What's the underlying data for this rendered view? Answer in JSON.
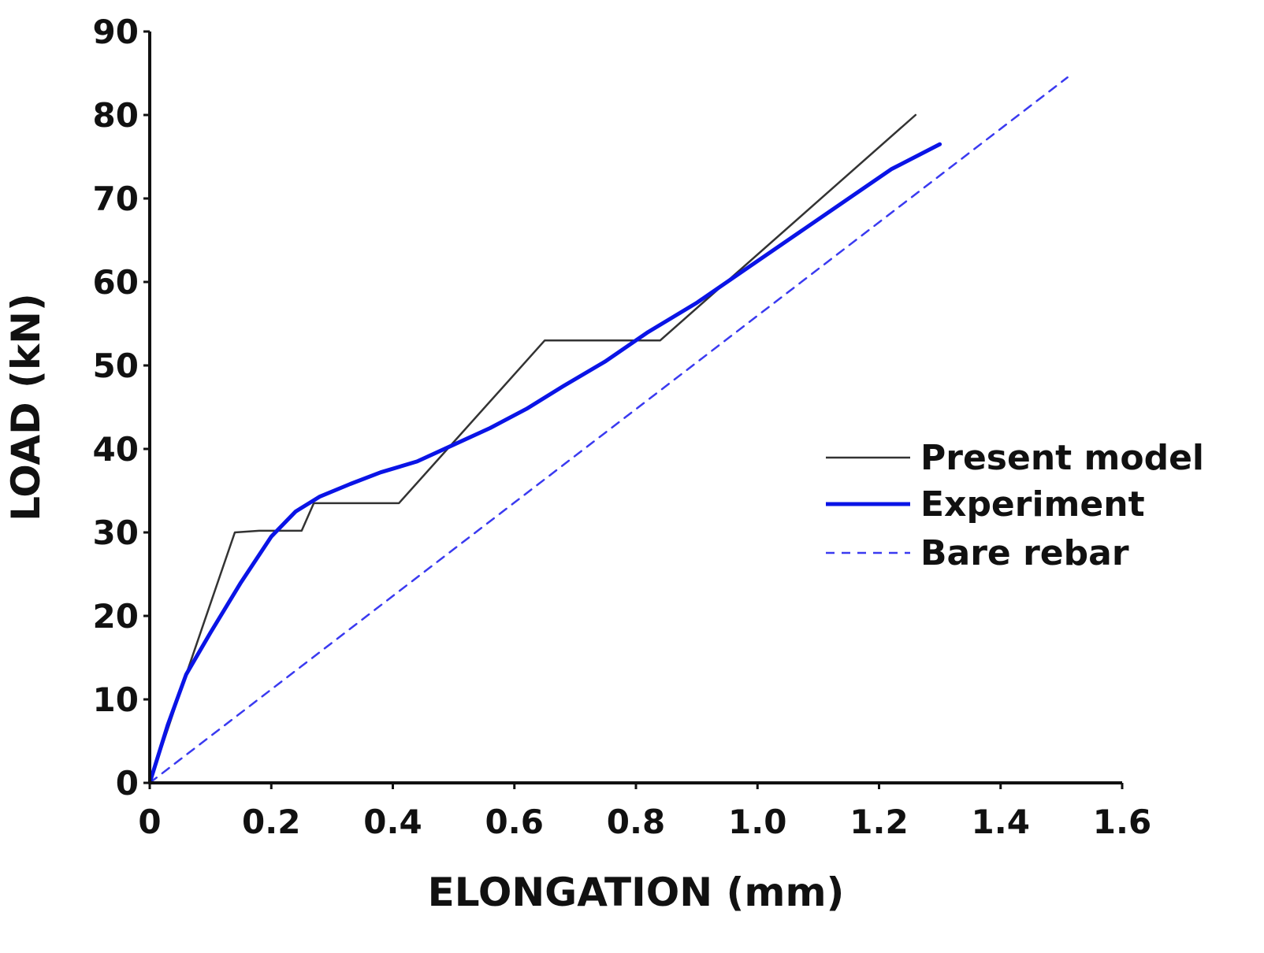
{
  "chart_data": {
    "type": "line",
    "title": "",
    "xlabel": "ELONGATION (mm)",
    "ylabel": "LOAD (kN)",
    "xlim": [
      0,
      1.6
    ],
    "ylim": [
      0,
      90
    ],
    "xticks": [
      0,
      0.2,
      0.4,
      0.6,
      0.8,
      1.0,
      1.2,
      1.4,
      1.6
    ],
    "xtick_labels": [
      "0",
      "0.2",
      "0.4",
      "0.6",
      "0.8",
      "1.0",
      "1.2",
      "1.4",
      "1.6"
    ],
    "yticks": [
      0,
      10,
      20,
      30,
      40,
      50,
      60,
      70,
      80,
      90
    ],
    "ytick_labels": [
      "0",
      "10",
      "20",
      "30",
      "40",
      "50",
      "60",
      "70",
      "80",
      "90"
    ],
    "grid": false,
    "legend_position": "right-middle",
    "series": [
      {
        "name": "Present model",
        "color": "#333333",
        "style": "solid-thin",
        "x": [
          0,
          0.06,
          0.14,
          0.18,
          0.25,
          0.27,
          0.41,
          0.65,
          0.84,
          1.26
        ],
        "y": [
          0,
          13,
          30,
          30.2,
          30.2,
          33.5,
          33.5,
          53,
          53,
          80
        ]
      },
      {
        "name": "Experiment",
        "color": "#0a14e6",
        "style": "solid-thick",
        "x": [
          0,
          0.03,
          0.06,
          0.1,
          0.15,
          0.2,
          0.24,
          0.28,
          0.33,
          0.38,
          0.44,
          0.5,
          0.56,
          0.62,
          0.68,
          0.75,
          0.82,
          0.9,
          0.98,
          1.06,
          1.14,
          1.22,
          1.3
        ],
        "y": [
          0,
          7,
          13,
          18,
          24,
          29.5,
          32.5,
          34.3,
          35.8,
          37.2,
          38.5,
          40.5,
          42.5,
          44.8,
          47.5,
          50.5,
          54,
          57.5,
          61.5,
          65.5,
          69.5,
          73.5,
          76.5
        ]
      },
      {
        "name": "Bare rebar",
        "color": "#3a3af0",
        "style": "dashed",
        "x": [
          0,
          1.51
        ],
        "y": [
          0,
          84.5
        ]
      }
    ]
  }
}
